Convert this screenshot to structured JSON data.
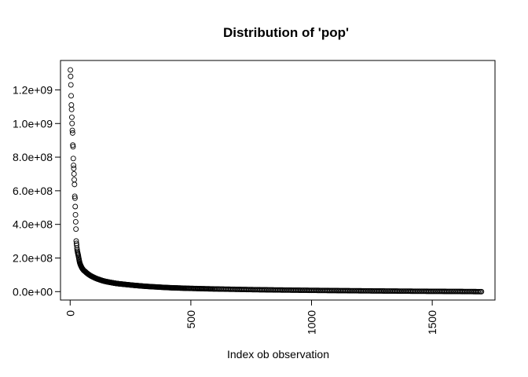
{
  "chart_data": {
    "type": "scatter",
    "title": "Distribution of 'pop'",
    "xlabel": "Index ob observation",
    "ylabel": "",
    "xlim": [
      -40,
      1760
    ],
    "ylim": [
      -50000000,
      1375000000
    ],
    "x_ticks": [
      0,
      500,
      1000,
      1500
    ],
    "x_tick_labels": [
      "0",
      "500",
      "1000",
      "1500"
    ],
    "y_ticks": [
      0,
      200000000,
      400000000,
      600000000,
      800000000,
      1000000000,
      1200000000
    ],
    "y_tick_labels": [
      "0.0e+00",
      "2.0e+08",
      "4.0e+08",
      "6.0e+08",
      "8.0e+08",
      "1.0e+09",
      "1.2e+09"
    ],
    "n_points": 1704,
    "series": [
      {
        "points": [
          [
            1,
            1318683096
          ],
          [
            2,
            1280400000
          ],
          [
            3,
            1230075000
          ],
          [
            4,
            1164970000
          ],
          [
            5,
            1110396331
          ],
          [
            6,
            1084035000
          ],
          [
            7,
            1036991000
          ],
          [
            8,
            1000281000
          ],
          [
            9,
            959000000
          ],
          [
            10,
            943455000
          ],
          [
            11,
            872000000
          ],
          [
            12,
            862030000
          ],
          [
            13,
            792000000
          ],
          [
            14,
            751000000
          ],
          [
            15,
            733000000
          ],
          [
            16,
            700000000
          ],
          [
            17,
            665770000
          ],
          [
            18,
            637408000
          ],
          [
            19,
            567000000
          ],
          [
            20,
            556000000
          ],
          [
            21,
            506000000
          ],
          [
            22,
            457000000
          ],
          [
            23,
            415000000
          ],
          [
            24,
            372000000
          ],
          [
            25,
            301000000
          ],
          [
            26,
            287000000
          ],
          [
            27,
            276000000
          ],
          [
            28,
            260000000
          ],
          [
            29,
            248000000
          ],
          [
            30,
            240000000
          ],
          [
            31,
            232000000
          ],
          [
            32,
            226000000
          ],
          [
            33,
            220000000
          ],
          [
            34,
            213000000
          ],
          [
            35,
            205000000
          ],
          [
            36,
            198000000
          ],
          [
            37,
            190000000
          ],
          [
            38,
            183000000
          ],
          [
            39,
            176000000
          ],
          [
            40,
            170000000
          ],
          [
            42,
            162000000
          ],
          [
            44,
            155000000
          ],
          [
            46,
            149000000
          ],
          [
            48,
            143000000
          ],
          [
            50,
            138000000
          ],
          [
            53,
            132000000
          ],
          [
            56,
            127000000
          ],
          [
            60,
            122000000
          ],
          [
            64,
            117000000
          ],
          [
            68,
            112000000
          ],
          [
            72,
            107000000
          ],
          [
            77,
            102000000
          ],
          [
            82,
            97000000
          ],
          [
            88,
            92000000
          ],
          [
            95,
            87000000
          ],
          [
            102,
            82000000
          ],
          [
            110,
            77000000
          ],
          [
            120,
            72000000
          ],
          [
            130,
            67000000
          ],
          [
            142,
            62000000
          ],
          [
            155,
            58000000
          ],
          [
            170,
            54000000
          ],
          [
            185,
            50000000
          ],
          [
            200,
            47000000
          ],
          [
            220,
            44000000
          ],
          [
            240,
            41000000
          ],
          [
            260,
            38000000
          ],
          [
            280,
            35500000
          ],
          [
            300,
            33000000
          ],
          [
            330,
            30000000
          ],
          [
            360,
            27500000
          ],
          [
            390,
            25000000
          ],
          [
            420,
            23000000
          ],
          [
            450,
            21500000
          ],
          [
            480,
            20000000
          ],
          [
            520,
            18500000
          ],
          [
            560,
            17000000
          ],
          [
            600,
            15800000
          ],
          [
            650,
            14500000
          ],
          [
            700,
            13200000
          ],
          [
            750,
            12000000
          ],
          [
            800,
            11000000
          ],
          [
            850,
            10000000
          ],
          [
            900,
            9200000
          ],
          [
            950,
            8400000
          ],
          [
            1000,
            7600000
          ],
          [
            1050,
            6900000
          ],
          [
            1100,
            6200000
          ],
          [
            1150,
            5500000
          ],
          [
            1200,
            4900000
          ],
          [
            1250,
            4300000
          ],
          [
            1300,
            3700000
          ],
          [
            1350,
            3200000
          ],
          [
            1400,
            2700000
          ],
          [
            1450,
            2200000
          ],
          [
            1500,
            1800000
          ],
          [
            1550,
            1400000
          ],
          [
            1600,
            1000000
          ],
          [
            1650,
            600000
          ],
          [
            1704,
            60011
          ]
        ]
      }
    ]
  }
}
